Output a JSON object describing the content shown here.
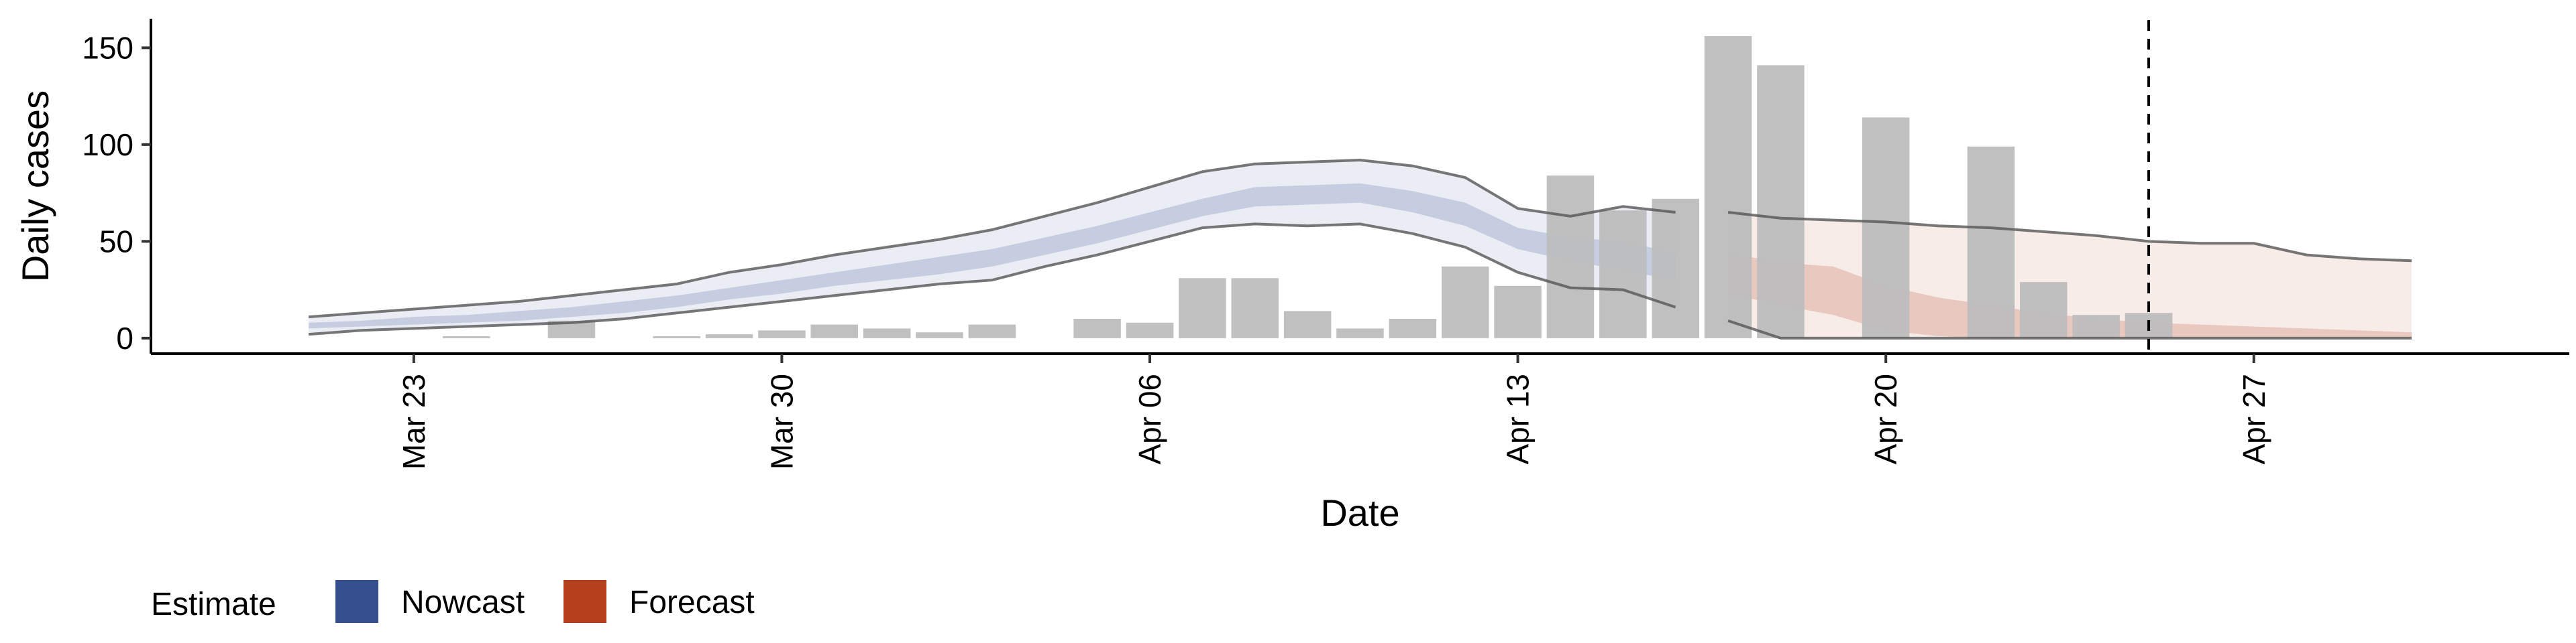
{
  "chart_data": {
    "type": "bar",
    "xlabel": "Date",
    "ylabel": "Daily cases",
    "x_axis": {
      "type": "date",
      "range": [
        "2020-03-18",
        "2020-05-03"
      ],
      "ticks": [
        {
          "date": "2020-03-23",
          "label": "Mar 23"
        },
        {
          "date": "2020-03-30",
          "label": "Mar 30"
        },
        {
          "date": "2020-04-06",
          "label": "Apr 06"
        },
        {
          "date": "2020-04-13",
          "label": "Apr 13"
        },
        {
          "date": "2020-04-20",
          "label": "Apr 20"
        },
        {
          "date": "2020-04-27",
          "label": "Apr 27"
        }
      ]
    },
    "y_axis": {
      "range": [
        -8,
        165
      ],
      "ticks": [
        {
          "value": 0,
          "label": "0"
        },
        {
          "value": 50,
          "label": "50"
        },
        {
          "value": 100,
          "label": "100"
        },
        {
          "value": 150,
          "label": "150"
        }
      ]
    },
    "grid": false,
    "bar_color": "#bdbdbd",
    "bars": [
      {
        "date": "2020-03-24",
        "value": 1
      },
      {
        "date": "2020-03-26",
        "value": 9
      },
      {
        "date": "2020-03-28",
        "value": 1
      },
      {
        "date": "2020-03-29",
        "value": 2
      },
      {
        "date": "2020-03-30",
        "value": 4
      },
      {
        "date": "2020-03-31",
        "value": 7
      },
      {
        "date": "2020-04-01",
        "value": 5
      },
      {
        "date": "2020-04-02",
        "value": 3
      },
      {
        "date": "2020-04-03",
        "value": 7
      },
      {
        "date": "2020-04-05",
        "value": 10
      },
      {
        "date": "2020-04-06",
        "value": 8
      },
      {
        "date": "2020-04-07",
        "value": 31
      },
      {
        "date": "2020-04-08",
        "value": 31
      },
      {
        "date": "2020-04-09",
        "value": 14
      },
      {
        "date": "2020-04-10",
        "value": 5
      },
      {
        "date": "2020-04-11",
        "value": 10
      },
      {
        "date": "2020-04-12",
        "value": 37
      },
      {
        "date": "2020-04-13",
        "value": 27
      },
      {
        "date": "2020-04-14",
        "value": 84
      },
      {
        "date": "2020-04-15",
        "value": 66
      },
      {
        "date": "2020-04-16",
        "value": 72
      },
      {
        "date": "2020-04-17",
        "value": 156
      },
      {
        "date": "2020-04-18",
        "value": 141
      },
      {
        "date": "2020-04-20",
        "value": 114
      },
      {
        "date": "2020-04-22",
        "value": 99
      },
      {
        "date": "2020-04-23",
        "value": 29
      },
      {
        "date": "2020-04-24",
        "value": 12
      },
      {
        "date": "2020-04-25",
        "value": 13
      }
    ],
    "series": [
      {
        "name": "Nowcast",
        "color": "#36508f",
        "dates": [
          "2020-03-21",
          "2020-03-22",
          "2020-03-23",
          "2020-03-24",
          "2020-03-25",
          "2020-03-26",
          "2020-03-27",
          "2020-03-28",
          "2020-03-29",
          "2020-03-30",
          "2020-03-31",
          "2020-04-01",
          "2020-04-02",
          "2020-04-03",
          "2020-04-04",
          "2020-04-05",
          "2020-04-06",
          "2020-04-07",
          "2020-04-08",
          "2020-04-09",
          "2020-04-10",
          "2020-04-11",
          "2020-04-12",
          "2020-04-13",
          "2020-04-14",
          "2020-04-15",
          "2020-04-16"
        ],
        "outer_upper": [
          11,
          13,
          15,
          17,
          19,
          22,
          25,
          28,
          34,
          38,
          43,
          47,
          51,
          56,
          63,
          70,
          78,
          86,
          90,
          91,
          92,
          89,
          83,
          67,
          63,
          68,
          65
        ],
        "outer_lower": [
          2,
          4,
          5,
          6,
          7,
          8,
          10,
          13,
          16,
          19,
          22,
          25,
          28,
          30,
          37,
          43,
          50,
          57,
          59,
          58,
          59,
          54,
          47,
          34,
          26,
          25,
          16
        ],
        "inner_upper": [
          8,
          9,
          11,
          12,
          14,
          16,
          19,
          22,
          26,
          30,
          34,
          38,
          42,
          46,
          52,
          58,
          65,
          72,
          78,
          79,
          80,
          76,
          70,
          57,
          52,
          50,
          44
        ],
        "inner_lower": [
          5,
          6,
          7,
          8,
          9,
          11,
          13,
          16,
          20,
          23,
          27,
          30,
          33,
          37,
          43,
          49,
          56,
          63,
          68,
          69,
          70,
          65,
          58,
          46,
          40,
          35,
          30
        ]
      },
      {
        "name": "Forecast",
        "color": "#b5411c",
        "dates": [
          "2020-04-17",
          "2020-04-18",
          "2020-04-19",
          "2020-04-20",
          "2020-04-21",
          "2020-04-22",
          "2020-04-23",
          "2020-04-24",
          "2020-04-25",
          "2020-04-26",
          "2020-04-27",
          "2020-04-28",
          "2020-04-29",
          "2020-04-30"
        ],
        "outer_upper": [
          65,
          62,
          61,
          60,
          58,
          57,
          55,
          53,
          50,
          49,
          49,
          43,
          41,
          40
        ],
        "outer_lower": [
          9,
          0,
          0,
          0,
          0,
          0,
          0,
          0,
          0,
          0,
          0,
          0,
          0,
          0
        ],
        "inner_upper": [
          44,
          39,
          37,
          27,
          21,
          17,
          13,
          10,
          8,
          7,
          6,
          5,
          4,
          3
        ],
        "inner_lower": [
          23,
          17,
          12,
          4,
          1,
          0,
          0,
          0,
          0,
          0,
          0,
          0,
          0,
          0
        ]
      }
    ],
    "reference_line": {
      "date": "2020-04-25",
      "style": "dashed",
      "color": "#000000"
    },
    "legend": {
      "title": "Estimate",
      "placement": "bottom-left",
      "entries": [
        {
          "label": "Nowcast",
          "color": "#36508f"
        },
        {
          "label": "Forecast",
          "color": "#b5411c"
        }
      ]
    }
  }
}
